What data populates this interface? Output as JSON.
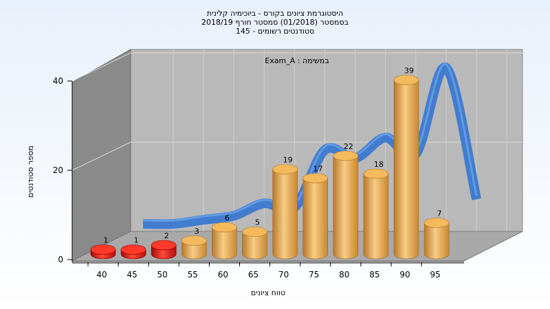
{
  "chart_data": {
    "type": "bar",
    "title_lines": [
      "היסטוגרמת ציונים בקורס - ביוכימיה קלינית",
      "בסמסטר  (01/2018)  סמסטר חורף 2018/19",
      "145 - סטודנטים רשומים"
    ],
    "annotation": "Exam_A : במשימה",
    "xlabel": "טווח ציונים",
    "ylabel": "מספר סטודנטים",
    "categories": [
      "40",
      "45",
      "50",
      "55",
      "60",
      "65",
      "70",
      "75",
      "80",
      "85",
      "90",
      "95"
    ],
    "values": [
      1,
      1,
      2,
      3,
      6,
      5,
      19,
      17,
      22,
      18,
      39,
      7
    ],
    "bar_colors": [
      "#e01010",
      "#e01010",
      "#e01010",
      "#e8a84a",
      "#e8a84a",
      "#e8a84a",
      "#e8a84a",
      "#e8a84a",
      "#e8a84a",
      "#e8a84a",
      "#e8a84a",
      "#e8a84a"
    ],
    "curve_color": "#3a78d0",
    "yticks": [
      0,
      20,
      40
    ],
    "ylim": [
      0,
      40
    ],
    "grid": true
  }
}
